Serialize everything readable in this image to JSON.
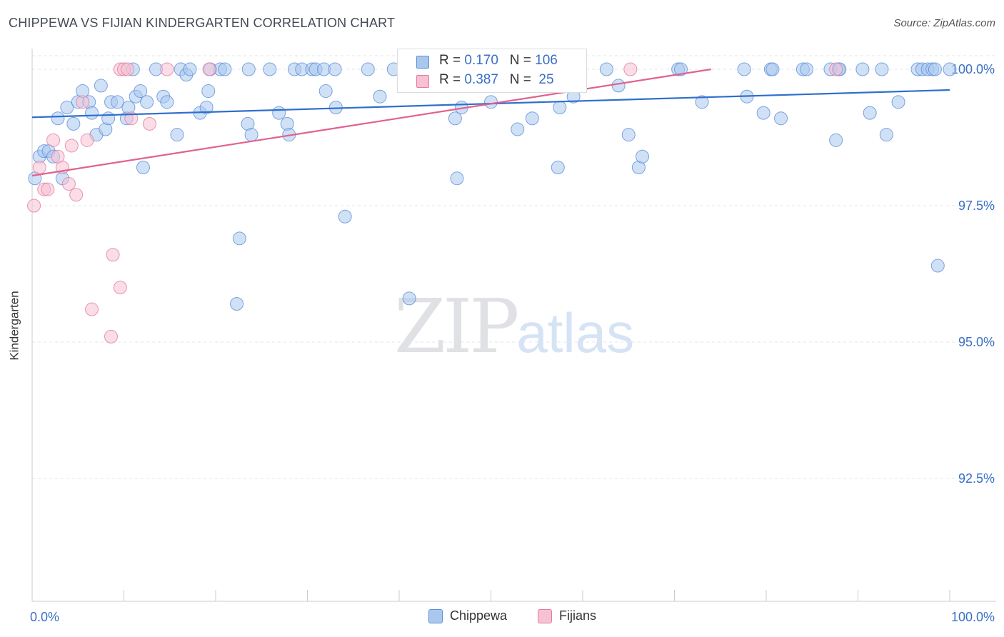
{
  "title": "CHIPPEWA VS FIJIAN KINDERGARTEN CORRELATION CHART",
  "source": "Source: ZipAtlas.com",
  "watermark": {
    "zip": "ZIP",
    "atlas": "atlas"
  },
  "colors": {
    "chippewa": "#5b8fd9",
    "chippewa_fill": "#aac8ee",
    "fijians": "#e37b9f",
    "fijians_fill": "#f6c1d3",
    "chippewa_line": "#2f6fcc",
    "fijians_line": "#e0628e",
    "tick_label": "#3a6fc6",
    "grid": "#e3e6ea"
  },
  "stats": {
    "chippewa": {
      "r_label": "R = ",
      "r": "0.170",
      "n_label": "N = ",
      "n": "106"
    },
    "fijians": {
      "r_label": "R = ",
      "r": "0.387",
      "n_label": "N = ",
      "n": " 25"
    }
  },
  "legend": {
    "chippewa": "Chippewa",
    "fijians": "Fijians"
  },
  "chart_data": {
    "type": "scatter",
    "title": "CHIPPEWA VS FIJIAN KINDERGARTEN CORRELATION CHART",
    "xlabel": "",
    "ylabel": "Kindergarten",
    "xlim": [
      0,
      100
    ],
    "ylim": [
      90.4,
      100.3
    ],
    "x_tick_labels": [
      {
        "value": 0,
        "label": "0.0%"
      },
      {
        "value": 100,
        "label": "100.0%"
      }
    ],
    "x_minor_ticks": [
      0,
      10,
      20,
      30,
      40,
      50,
      60,
      70,
      80,
      90,
      100
    ],
    "y_ticks": [
      {
        "value": 100,
        "label": "100.0%"
      },
      {
        "value": 97.5,
        "label": "97.5%"
      },
      {
        "value": 95,
        "label": "95.0%"
      },
      {
        "value": 92.5,
        "label": "92.5%"
      }
    ],
    "series": [
      {
        "name": "Chippewa",
        "points": [
          [
            0.3,
            98.0
          ],
          [
            0.8,
            98.4
          ],
          [
            1.3,
            98.5
          ],
          [
            1.8,
            98.5
          ],
          [
            2.3,
            98.4
          ],
          [
            2.8,
            99.1
          ],
          [
            3.3,
            98.0
          ],
          [
            3.8,
            99.3
          ],
          [
            4.5,
            99.0
          ],
          [
            5.0,
            99.4
          ],
          [
            5.5,
            99.6
          ],
          [
            6.2,
            99.4
          ],
          [
            6.5,
            99.2
          ],
          [
            7.0,
            98.8
          ],
          [
            7.5,
            99.7
          ],
          [
            8.0,
            98.9
          ],
          [
            8.3,
            99.1
          ],
          [
            8.6,
            99.4
          ],
          [
            9.3,
            99.4
          ],
          [
            10.3,
            99.1
          ],
          [
            10.5,
            99.3
          ],
          [
            11.0,
            100.0
          ],
          [
            11.3,
            99.5
          ],
          [
            11.8,
            99.6
          ],
          [
            12.1,
            98.2
          ],
          [
            12.5,
            99.4
          ],
          [
            13.5,
            100.0
          ],
          [
            14.3,
            99.5
          ],
          [
            14.7,
            99.4
          ],
          [
            15.8,
            98.8
          ],
          [
            16.2,
            100.0
          ],
          [
            16.8,
            99.9
          ],
          [
            17.2,
            100.0
          ],
          [
            18.3,
            99.2
          ],
          [
            19.0,
            99.3
          ],
          [
            19.4,
            100.0
          ],
          [
            19.2,
            99.6
          ],
          [
            20.5,
            100.0
          ],
          [
            21.0,
            100.0
          ],
          [
            22.6,
            96.9
          ],
          [
            22.3,
            95.7
          ],
          [
            23.6,
            100.0
          ],
          [
            23.5,
            99.0
          ],
          [
            23.9,
            98.8
          ],
          [
            25.9,
            100.0
          ],
          [
            26.9,
            99.2
          ],
          [
            27.8,
            99.0
          ],
          [
            28.0,
            98.8
          ],
          [
            28.6,
            100.0
          ],
          [
            29.4,
            100.0
          ],
          [
            30.5,
            100.0
          ],
          [
            30.9,
            100.0
          ],
          [
            31.8,
            100.0
          ],
          [
            32.0,
            99.6
          ],
          [
            33.0,
            100.0
          ],
          [
            33.1,
            99.3
          ],
          [
            34.1,
            97.3
          ],
          [
            36.6,
            100.0
          ],
          [
            37.9,
            99.5
          ],
          [
            39.4,
            100.0
          ],
          [
            41.6,
            100.0
          ],
          [
            41.1,
            95.8
          ],
          [
            45.8,
            100.0
          ],
          [
            46.1,
            99.1
          ],
          [
            46.3,
            98.0
          ],
          [
            46.8,
            99.3
          ],
          [
            50.0,
            99.4
          ],
          [
            51.5,
            100.0
          ],
          [
            52.9,
            98.9
          ],
          [
            54.5,
            99.1
          ],
          [
            55.2,
            100.0
          ],
          [
            57.3,
            98.2
          ],
          [
            57.5,
            99.3
          ],
          [
            62.6,
            100.0
          ],
          [
            63.9,
            99.7
          ],
          [
            65.0,
            98.8
          ],
          [
            66.1,
            98.2
          ],
          [
            66.5,
            98.4
          ],
          [
            70.4,
            100.0
          ],
          [
            70.7,
            100.0
          ],
          [
            73.0,
            99.4
          ],
          [
            77.6,
            100.0
          ],
          [
            77.9,
            99.5
          ],
          [
            79.7,
            99.2
          ],
          [
            80.5,
            100.0
          ],
          [
            80.7,
            100.0
          ],
          [
            81.6,
            99.1
          ],
          [
            84.0,
            100.0
          ],
          [
            84.4,
            100.0
          ],
          [
            87.0,
            100.0
          ],
          [
            87.6,
            98.7
          ],
          [
            87.9,
            100.0
          ],
          [
            90.5,
            100.0
          ],
          [
            91.3,
            99.2
          ],
          [
            92.6,
            100.0
          ],
          [
            93.1,
            98.8
          ],
          [
            94.4,
            99.4
          ],
          [
            96.5,
            100.0
          ],
          [
            97.0,
            100.0
          ],
          [
            97.6,
            100.0
          ],
          [
            98.1,
            100.0
          ],
          [
            98.7,
            96.4
          ],
          [
            98.4,
            100.0
          ],
          [
            100.0,
            100.0
          ],
          [
            88.0,
            100.0
          ],
          [
            59.0,
            99.5
          ]
        ]
      },
      {
        "name": "Fijians",
        "points": [
          [
            0.2,
            97.5
          ],
          [
            0.8,
            98.2
          ],
          [
            1.3,
            97.8
          ],
          [
            1.7,
            97.8
          ],
          [
            2.3,
            98.7
          ],
          [
            2.8,
            98.4
          ],
          [
            3.3,
            98.2
          ],
          [
            4.0,
            97.9
          ],
          [
            4.3,
            98.6
          ],
          [
            4.8,
            97.7
          ],
          [
            5.5,
            99.4
          ],
          [
            6.0,
            98.7
          ],
          [
            6.5,
            95.6
          ],
          [
            8.6,
            95.1
          ],
          [
            8.8,
            96.6
          ],
          [
            9.6,
            96.0
          ],
          [
            9.6,
            100.0
          ],
          [
            10.0,
            100.0
          ],
          [
            10.4,
            100.0
          ],
          [
            10.8,
            99.1
          ],
          [
            12.8,
            99.0
          ],
          [
            14.7,
            100.0
          ],
          [
            19.3,
            100.0
          ],
          [
            65.2,
            100.0
          ],
          [
            87.6,
            100.0
          ]
        ]
      }
    ],
    "trend_lines": [
      {
        "name": "Chippewa",
        "x": [
          0,
          100
        ],
        "y": [
          99.12,
          99.62
        ]
      },
      {
        "name": "Fijians",
        "x": [
          0,
          74
        ],
        "y": [
          98.05,
          100.0
        ]
      }
    ]
  }
}
